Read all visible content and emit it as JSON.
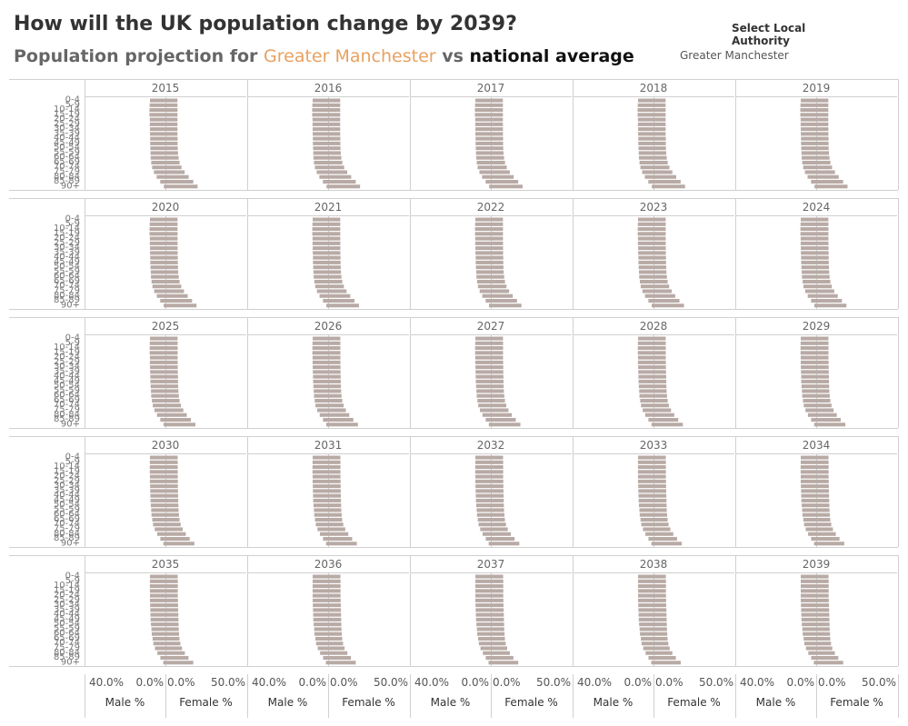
{
  "header": {
    "title": "How will the UK population change by 2039?",
    "subtitle_prefix": "Population projection for",
    "subtitle_highlight": "Greater Manchester",
    "subtitle_vs": "vs",
    "subtitle_national": "national average"
  },
  "filter": {
    "label": "Select Local Authority",
    "value": "Greater Manchester"
  },
  "colors": {
    "bar": "#b8aaa5",
    "highlight": "#e8a160",
    "border": "#d0d0d0",
    "center_line": "#cfcfcf"
  },
  "chart_data": {
    "type": "bar",
    "orientation": "horizontal",
    "layout": "small-multiples",
    "years": [
      "2015",
      "2016",
      "2017",
      "2018",
      "2019",
      "2020",
      "2021",
      "2022",
      "2023",
      "2024",
      "2025",
      "2026",
      "2027",
      "2028",
      "2029",
      "2030",
      "2031",
      "2032",
      "2033",
      "2034",
      "2035",
      "2036",
      "2037",
      "2038",
      "2039"
    ],
    "age_groups": [
      "0-4",
      "5-9",
      "10-14",
      "15-19",
      "20-24",
      "25-29",
      "30-34",
      "35-39",
      "40-44",
      "45-49",
      "50-54",
      "55-59",
      "60-64",
      "65-69",
      "70-74",
      "75-79",
      "80-84",
      "85-89",
      "90+"
    ],
    "male_axis": {
      "label": "Male %",
      "ticks": [
        "40.0%",
        "0.0%"
      ],
      "range": [
        0,
        40
      ]
    },
    "female_axis": {
      "label": "Female %",
      "ticks": [
        "0.0%",
        "50.0%"
      ],
      "range": [
        0,
        50
      ]
    },
    "male_pct_2015": [
      8.6,
      8.8,
      8.9,
      8.9,
      8.7,
      8.7,
      8.6,
      8.6,
      8.5,
      8.5,
      8.4,
      8.3,
      8.2,
      7.9,
      7.4,
      6.4,
      4.9,
      2.9,
      0.9
    ],
    "male_pct_2039": [
      8.6,
      8.6,
      8.6,
      8.6,
      8.6,
      8.6,
      8.5,
      8.4,
      8.3,
      8.2,
      8.0,
      7.7,
      7.5,
      7.0,
      6.6,
      5.7,
      4.4,
      2.8,
      1.3
    ],
    "female_pct_2015": [
      8.4,
      8.4,
      8.4,
      8.4,
      8.4,
      8.4,
      8.4,
      8.4,
      8.5,
      8.5,
      8.6,
      8.8,
      9.2,
      9.9,
      11.2,
      13.4,
      16.2,
      19.4,
      22.4
    ],
    "female_pct_2039": [
      8.6,
      8.7,
      8.7,
      8.7,
      8.7,
      8.8,
      8.9,
      9.0,
      9.1,
      9.2,
      9.3,
      9.4,
      9.6,
      9.8,
      10.3,
      11.2,
      13.0,
      15.4,
      18.8
    ]
  }
}
